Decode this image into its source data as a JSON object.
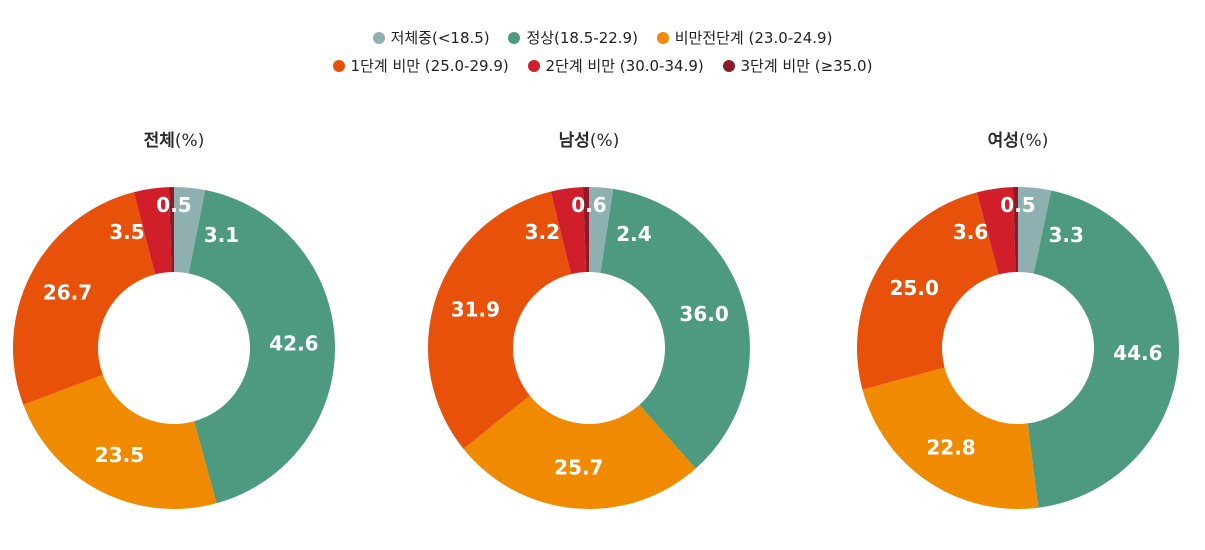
{
  "legend": [
    {
      "label": "저체중(<18.5)",
      "color": "#8fb0b0"
    },
    {
      "label": "정상(18.5-22.9)",
      "color": "#4e9a80"
    },
    {
      "label": "비만전단계 (23.0-24.9)",
      "color": "#f08a00"
    },
    {
      "label": "1단계 비만 (25.0-29.9)",
      "color": "#e8510a"
    },
    {
      "label": "2단계 비만 (30.0-34.9)",
      "color": "#d01f2a"
    },
    {
      "label": "3단계 비만 (≥35.0)",
      "color": "#8a1c2a"
    }
  ],
  "chart_data": [
    {
      "type": "pie",
      "title": "전체",
      "title_unit": "(%)",
      "categories": [
        "저체중(<18.5)",
        "정상(18.5-22.9)",
        "비만전단계 (23.0-24.9)",
        "1단계 비만 (25.0-29.9)",
        "2단계 비만 (30.0-34.9)",
        "3단계 비만 (≥35.0)"
      ],
      "values": [
        3.1,
        42.6,
        23.5,
        26.7,
        3.5,
        0.5
      ],
      "labels": [
        "3.1",
        "42.6",
        "23.5",
        "26.7",
        "3.5",
        "0.5"
      ]
    },
    {
      "type": "pie",
      "title": "남성",
      "title_unit": "(%)",
      "categories": [
        "저체중(<18.5)",
        "정상(18.5-22.9)",
        "비만전단계 (23.0-24.9)",
        "1단계 비만 (25.0-29.9)",
        "2단계 비만 (30.0-34.9)",
        "3단계 비만 (≥35.0)"
      ],
      "values": [
        2.4,
        36.0,
        25.7,
        31.9,
        3.2,
        0.6
      ],
      "labels": [
        "2.4",
        "36.0",
        "25.7",
        "31.9",
        "3.2",
        "0.6"
      ]
    },
    {
      "type": "pie",
      "title": "여성",
      "title_unit": "(%)",
      "categories": [
        "저체중(<18.5)",
        "정상(18.5-22.9)",
        "비만전단계 (23.0-24.9)",
        "1단계 비만 (25.0-29.9)",
        "2단계 비만 (30.0-34.9)",
        "3단계 비만 (≥35.0)"
      ],
      "values": [
        3.3,
        44.6,
        22.8,
        25.0,
        3.6,
        0.5
      ],
      "labels": [
        "3.3",
        "44.6",
        "22.8",
        "25.0",
        "3.6",
        "0.5"
      ]
    }
  ]
}
